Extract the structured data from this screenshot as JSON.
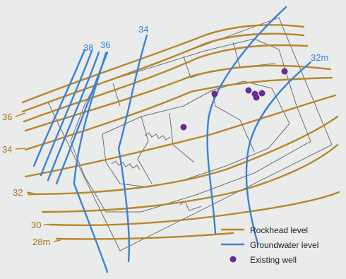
{
  "map": {
    "colors": {
      "background": "#e9eceb",
      "rockhead": "#b8862b",
      "groundwater": "#3b82d4",
      "well": "#6a2c8c",
      "site_outline": "#6e6e6e"
    },
    "rockhead_labels": [
      "36",
      "34",
      "32",
      "30",
      "28m"
    ],
    "groundwater_labels": [
      "38",
      "36",
      "34",
      "32m"
    ],
    "legend": {
      "rockhead": "Rockhead level",
      "groundwater": "Groundwater level",
      "well": "Existing well"
    },
    "well_count": 7
  }
}
